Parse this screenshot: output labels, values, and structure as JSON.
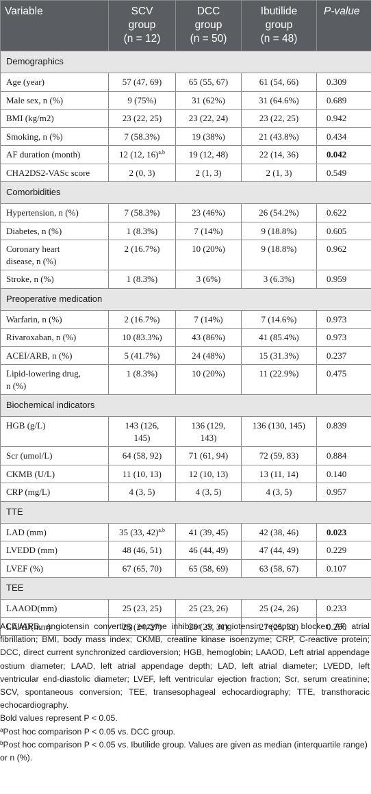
{
  "headers": {
    "variable": "Variable",
    "scv": {
      "line1": "SCV",
      "line2": "group",
      "line3": "(n = 12)"
    },
    "dcc": {
      "line1": "DCC",
      "line2": "group",
      "line3": "(n = 50)"
    },
    "ibu": {
      "line1": "Ibutilide",
      "line2": "group",
      "line3": "(n = 48)"
    },
    "pvalue": "P-value"
  },
  "sections": {
    "demographics": "Demographics",
    "comorbidities": "Comorbidities",
    "preop": "Preoperative medication",
    "biochem": "Biochemical indicators",
    "tte": "TTE",
    "tee": "TEE"
  },
  "rows": {
    "age": {
      "label": "Age (year)",
      "scv": "57 (47, 69)",
      "dcc": "65 (55, 67)",
      "ibu": "61 (54, 66)",
      "p": "0.309"
    },
    "male": {
      "label": "Male sex, n (%)",
      "scv": "9 (75%)",
      "dcc": "31 (62%)",
      "ibu": "31 (64.6%)",
      "p": "0.689"
    },
    "bmi": {
      "label": "BMI (kg/m2)",
      "scv": "23 (22, 25)",
      "dcc": "23 (22, 24)",
      "ibu": "23 (22, 25)",
      "p": "0.942"
    },
    "smoking": {
      "label": "Smoking, n (%)",
      "scv": "7 (58.3%)",
      "dcc": "19 (38%)",
      "ibu": "21 (43.8%)",
      "p": "0.434"
    },
    "af": {
      "label": "AF duration (month)",
      "scv": "12 (12, 16)",
      "scv_sup": "a,b",
      "dcc": "19 (12, 48)",
      "ibu": "22 (14, 36)",
      "p": "0.042"
    },
    "cha": {
      "label": "CHA2DS2-VASc score",
      "scv": "2 (0, 3)",
      "dcc": "2 (1, 3)",
      "ibu": "2 (1, 3)",
      "p": "0.549"
    },
    "htn": {
      "label": "Hypertension, n (%)",
      "scv": "7 (58.3%)",
      "dcc": "23 (46%)",
      "ibu": "26 (54.2%)",
      "p": "0.622"
    },
    "dm": {
      "label": "Diabetes, n (%)",
      "scv": "1 (8.3%)",
      "dcc": "7 (14%)",
      "ibu": "9 (18.8%)",
      "p": "0.605"
    },
    "chd": {
      "label_line1": "Coronary heart",
      "label_line2": "disease, n (%)",
      "scv": "2 (16.7%)",
      "dcc": "10 (20%)",
      "ibu": "9 (18.8%)",
      "p": "0.962"
    },
    "stroke": {
      "label": "Stroke, n (%)",
      "scv": "1 (8.3%)",
      "dcc": "3 (6%)",
      "ibu": "3 (6.3%)",
      "p": "0.959"
    },
    "warfarin": {
      "label": "Warfarin, n (%)",
      "scv": "2 (16.7%)",
      "dcc": "7 (14%)",
      "ibu": "7 (14.6%)",
      "p": "0.973"
    },
    "rivaroxaban": {
      "label": "Rivaroxaban, n (%)",
      "scv": "10 (83.3%)",
      "dcc": "43 (86%)",
      "ibu": "41 (85.4%)",
      "p": "0.973"
    },
    "acei": {
      "label": "ACEI/ARB, n (%)",
      "scv": "5 (41.7%)",
      "dcc": "24 (48%)",
      "ibu": "15 (31.3%)",
      "p": "0.237"
    },
    "lipid": {
      "label_line1": "Lipid-lowering drug,",
      "label_line2": "n (%)",
      "scv": "1 (8.3%)",
      "dcc": "10 (20%)",
      "ibu": "11 (22.9%)",
      "p": "0.475"
    },
    "hgb": {
      "label": "HGB (g/L)",
      "scv_line1": "143 (126,",
      "scv_line2": "145)",
      "dcc_line1": "136 (129,",
      "dcc_line2": "143)",
      "ibu": "136 (130, 145)",
      "p": "0.839"
    },
    "scr": {
      "label": "Scr (umol/L)",
      "scv": "64 (58, 92)",
      "dcc": "71 (61, 94)",
      "ibu": "72 (59, 83)",
      "p": "0.884"
    },
    "ckmb": {
      "label": "CKMB (U/L)",
      "scv": "11 (10, 13)",
      "dcc": "12 (10, 13)",
      "ibu": "13 (11, 14)",
      "p": "0.140"
    },
    "crp": {
      "label": "CRP (mg/L)",
      "scv": "4 (3, 5)",
      "dcc": "4 (3, 5)",
      "ibu": "4 (3, 5)",
      "p": "0.957"
    },
    "lad": {
      "label": "LAD (mm)",
      "scv": "35 (33, 42)",
      "scv_sup": "a,b",
      "dcc": "41 (39, 45)",
      "ibu": "42 (38, 46)",
      "p": "0.023"
    },
    "lvedd": {
      "label": "LVEDD (mm)",
      "scv": "48 (46, 51)",
      "dcc": "46 (44, 49)",
      "ibu": "47 (44, 49)",
      "p": "0.229"
    },
    "lvef": {
      "label": "LVEF (%)",
      "scv": "67 (65, 70)",
      "dcc": "65 (58, 69)",
      "ibu": "63 (58, 67)",
      "p": "0.107"
    },
    "laaod": {
      "label": "LAAOD(mm)",
      "scv": "25 (23, 25)",
      "dcc": "25 (23, 26)",
      "ibu": "25 (24, 26)",
      "p": "0.233"
    },
    "laad": {
      "label": "LAAD(mm)",
      "scv": "25 (24, 27)",
      "dcc": "26 (25, 31)",
      "ibu": "27 (25, 32)",
      "p": "0.250"
    }
  },
  "notes": {
    "abbreviations": "ACEI/ARB, angiotensin converting enzyme inhibitor or angiotensin receptor blocker; AF, atrial fibrillation; BMI, body mass index; CKMB, creatine kinase isoenzyme; CRP, C-reactive protein; DCC, direct current synchronized cardioversion; HGB, hemoglobin; LAAOD, Left atrial appendage ostium diameter; LAAD, left atrial appendage depth; LAD, left atrial diameter; LVEDD, left ventricular end-diastolic diameter; LVEF, left ventricular ejection fraction; Scr, serum creatinine; SCV, spontaneous conversion; TEE, transesophageal echocardiography; TTE, transthoracic echocardiography.",
    "bold_note": "Bold values represent P < 0.05.",
    "footnote_a": "Post hoc comparison P < 0.05 vs. DCC group.",
    "footnote_b": "Post hoc comparison P < 0.05 vs. Ibutilide group. Values are given as median (interquartile range) or n (%).",
    "marker_a": "a",
    "marker_b": "b"
  }
}
